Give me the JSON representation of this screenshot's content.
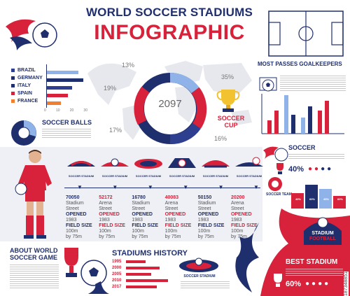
{
  "header": {
    "title_line1": "WORLD SOCCER STADIUMS",
    "title_line2": "INFOGRAPHIC"
  },
  "countries_chart": {
    "items": [
      {
        "label": "BRAZIL",
        "color": "#2f3f8f"
      },
      {
        "label": "GERMANY",
        "color": "#1f2f6e"
      },
      {
        "label": "ITALY",
        "color": "#1f2f6e"
      },
      {
        "label": "SPAIN",
        "color": "#d8213a"
      },
      {
        "label": "FRANCE",
        "color": "#f07f2f"
      }
    ],
    "axis_ticks": [
      "0",
      "10",
      "20",
      "30"
    ]
  },
  "donut": {
    "center_value": "2097",
    "percents": [
      "13%",
      "35%",
      "19%",
      "17%",
      "16%"
    ]
  },
  "soccer_balls": {
    "title": "SOCCER BALLS"
  },
  "soccer_cup": {
    "line1": "SOCCER",
    "line2": "CUP"
  },
  "goalkeepers": {
    "title": "MOST PASSES GOALKEEPERS"
  },
  "soccer_section": {
    "title": "SOCCER",
    "percent": "40%"
  },
  "soccer_team": {
    "label": "SOCCER TEAM",
    "percents": [
      "40%",
      "60%",
      "45%",
      "60%"
    ]
  },
  "stadium_logos": [
    {
      "name": "SOCCER STADIUM"
    },
    {
      "name": "SOCCER STADIUM"
    },
    {
      "name": "SOCCER STADIUM"
    },
    {
      "name": "SOCCER STADIUM"
    },
    {
      "name": "SOCCER STADIUM"
    },
    {
      "name": "SOCCER STADIUM"
    }
  ],
  "stadiums": [
    {
      "number": "70050",
      "type": "Stadium",
      "street": "Street",
      "opened_label": "OPENED",
      "year": "1983",
      "field_label": "FIELD SIZE",
      "size1": "100m",
      "size2": "by 75m"
    },
    {
      "number": "52172",
      "type": "Arena",
      "street": "Street",
      "opened_label": "OPENED",
      "year": "1983",
      "field_label": "FIELD SIZE",
      "size1": "100m",
      "size2": "by 75m"
    },
    {
      "number": "16780",
      "type": "Stadium",
      "street": "Street",
      "opened_label": "OPENED",
      "year": "1983",
      "field_label": "FIELD SIZE",
      "size1": "100m",
      "size2": "by 75m"
    },
    {
      "number": "40083",
      "type": "Arena",
      "street": "Street",
      "opened_label": "OPENED",
      "year": "1983",
      "field_label": "FIELD SIZE",
      "size1": "100m",
      "size2": "by 75m"
    },
    {
      "number": "50150",
      "type": "Stadium",
      "street": "Street",
      "opened_label": "OPENED",
      "year": "1983",
      "field_label": "FIELD SIZE",
      "size1": "100m",
      "size2": "by 75m"
    },
    {
      "number": "20200",
      "type": "Arena",
      "street": "Street",
      "opened_label": "OPENED",
      "year": "1983",
      "field_label": "FIELD SIZE",
      "size1": "100m",
      "size2": "by 75m"
    }
  ],
  "about": {
    "line1": "ABOUT WORLD",
    "line2": "SOCCER GAME"
  },
  "history": {
    "title": "STADIUMS HISTORY",
    "years": [
      "1995",
      "2000",
      "2005",
      "2010",
      "2017"
    ]
  },
  "best_stadium": {
    "title": "BEST STADIUM",
    "percent": "60%",
    "badge_line1": "STADIUM",
    "badge_line2": "FOOTBALL"
  },
  "history_logo": {
    "name": "SOCCER STADIUM"
  },
  "watermark": "187348851",
  "colors": {
    "navy": "#1f2f6e",
    "red": "#d8213a",
    "light_blue": "#8fb3e8"
  }
}
